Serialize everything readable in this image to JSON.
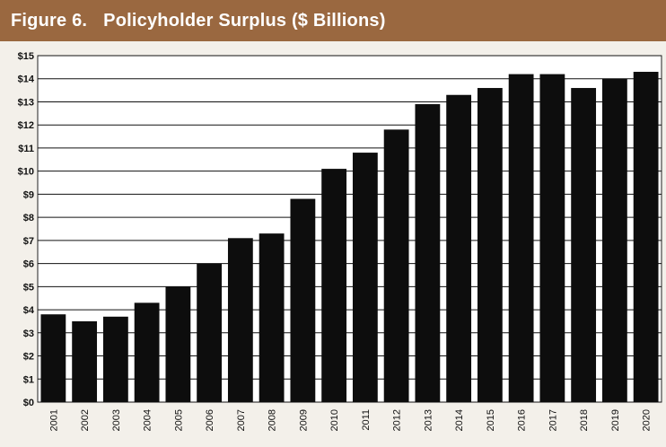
{
  "figure": {
    "number_label": "Figure 6.",
    "title": "Policyholder Surplus ($ Billions)"
  },
  "colors": {
    "header_bg": "#9a6840",
    "plot_bg": "#ffffff",
    "bar": "#0d0d0d",
    "grid": "#111111"
  },
  "chart_data": {
    "type": "bar",
    "title": "Policyholder Surplus ($ Billions)",
    "xlabel": "",
    "ylabel": "",
    "categories": [
      "2001",
      "2002",
      "2003",
      "2004",
      "2005",
      "2006",
      "2007",
      "2008",
      "2009",
      "2010",
      "2011",
      "2012",
      "2013",
      "2014",
      "2015",
      "2016",
      "2017",
      "2018",
      "2019",
      "2020"
    ],
    "values": [
      3.8,
      3.5,
      3.7,
      4.3,
      5.0,
      6.0,
      7.1,
      7.3,
      8.8,
      10.1,
      10.8,
      11.8,
      12.9,
      13.3,
      13.6,
      14.2,
      14.2,
      13.6,
      14.0,
      14.3
    ],
    "ylim": [
      0,
      15
    ],
    "yticks": [
      0,
      1,
      2,
      3,
      4,
      5,
      6,
      7,
      8,
      9,
      10,
      11,
      12,
      13,
      14,
      15
    ],
    "ytick_labels": [
      "$0",
      "$1",
      "$2",
      "$3",
      "$4",
      "$5",
      "$6",
      "$7",
      "$8",
      "$9",
      "$10",
      "$11",
      "$12",
      "$13",
      "$14",
      "$15"
    ],
    "grid": true,
    "legend": "none"
  }
}
